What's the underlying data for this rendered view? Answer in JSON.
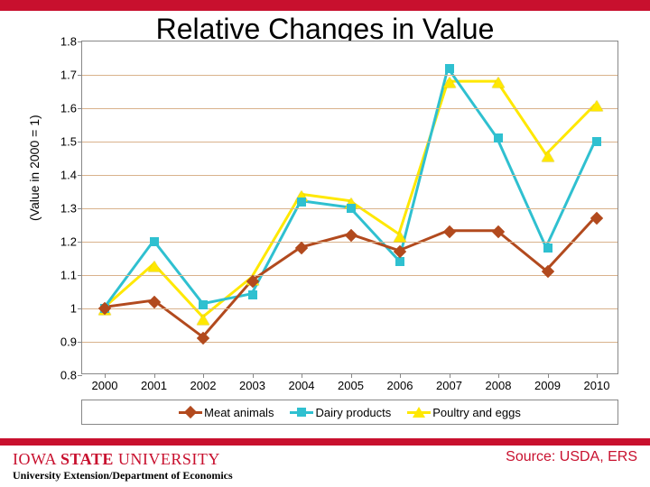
{
  "title": "Relative Changes in Value",
  "y_axis_label": "(Value in 2000 = 1)",
  "source_text": "Source: USDA, ERS",
  "institution_name_prefix": "IOWA ",
  "institution_name_mid": "STATE",
  "institution_name_suffix": " UNIVERSITY",
  "institution_sub": "University Extension/Department of Economics",
  "colors": {
    "red_bar": "#c8102e",
    "grid": "#d9b28c",
    "axis": "#808080",
    "plot_bg": "#ffffff",
    "series": {
      "meat": "#b24a1e",
      "dairy": "#2fc0d0",
      "poultry": "#ffe800",
      "poultry_border": "#b8a000"
    }
  },
  "chart": {
    "type": "line",
    "xlim": [
      2000,
      2010
    ],
    "ylim": [
      0.8,
      1.8
    ],
    "ytick_step": 0.1,
    "y_ticks": [
      0.8,
      0.9,
      1.0,
      1.1,
      1.2,
      1.3,
      1.4,
      1.5,
      1.6,
      1.7,
      1.8
    ],
    "y_tick_labels": [
      "0.8",
      "0.9",
      "1",
      "1.1",
      "1.2",
      "1.3",
      "1.4",
      "1.5",
      "1.6",
      "1.7",
      "1.8"
    ],
    "x_categories": [
      "2000",
      "2001",
      "2002",
      "2003",
      "2004",
      "2005",
      "2006",
      "2007",
      "2008",
      "2009",
      "2010"
    ],
    "line_width": 3,
    "marker_size": 10,
    "series": [
      {
        "name": "Meat animals",
        "marker": "diamond",
        "color_key": "meat",
        "data": [
          1.0,
          1.02,
          0.91,
          1.08,
          1.18,
          1.22,
          1.17,
          1.23,
          1.23,
          1.11,
          1.27
        ]
      },
      {
        "name": "Dairy products",
        "marker": "square",
        "color_key": "dairy",
        "data": [
          1.0,
          1.2,
          1.01,
          1.04,
          1.32,
          1.3,
          1.14,
          1.72,
          1.51,
          1.18,
          1.5
        ]
      },
      {
        "name": "Poultry and eggs",
        "marker": "triangle",
        "color_key": "poultry",
        "data": [
          1.0,
          1.13,
          0.97,
          1.09,
          1.34,
          1.32,
          1.22,
          1.68,
          1.68,
          1.46,
          1.61
        ]
      }
    ]
  }
}
